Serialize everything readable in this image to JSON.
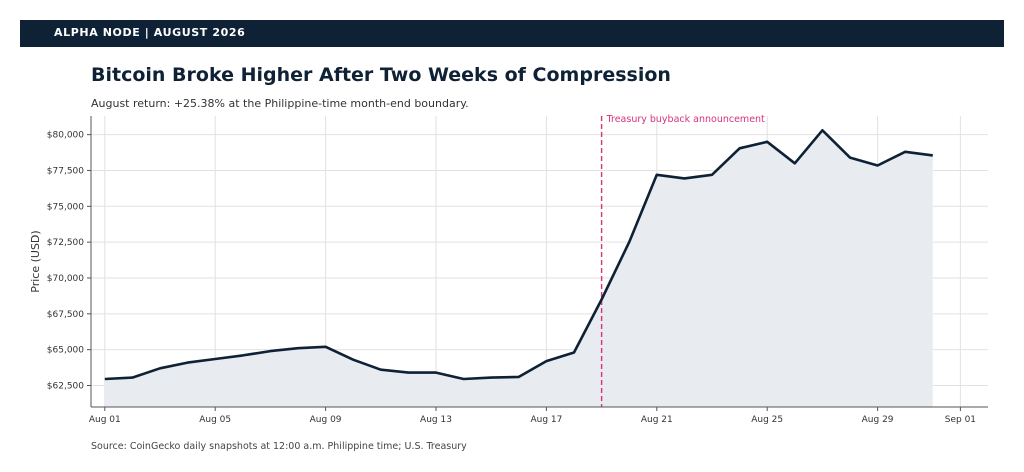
{
  "header": {
    "text": "ALPHA NODE | AUGUST 2026"
  },
  "title": "Bitcoin Broke Higher After Two Weeks of Compression",
  "subtitle": "August return: +25.38% at the Philippine-time month-end boundary.",
  "source": "Source: CoinGecko daily snapshots at 12:00 a.m. Philippine time; U.S. Treasury",
  "colors": {
    "line": "#0f2135",
    "fill": "#e8ecf0",
    "annotation": "#d6337a",
    "header": "#0f2135"
  },
  "chart_data": {
    "type": "line",
    "ylabel": "Price (USD)",
    "x": [
      "2026-08-01",
      "2026-08-02",
      "2026-08-03",
      "2026-08-04",
      "2026-08-05",
      "2026-08-06",
      "2026-08-07",
      "2026-08-08",
      "2026-08-09",
      "2026-08-10",
      "2026-08-11",
      "2026-08-12",
      "2026-08-13",
      "2026-08-14",
      "2026-08-15",
      "2026-08-16",
      "2026-08-17",
      "2026-08-18",
      "2026-08-19",
      "2026-08-20",
      "2026-08-21",
      "2026-08-22",
      "2026-08-23",
      "2026-08-24",
      "2026-08-25",
      "2026-08-26",
      "2026-08-27",
      "2026-08-28",
      "2026-08-29",
      "2026-08-30",
      "2026-08-31"
    ],
    "values": [
      62950,
      63050,
      63700,
      64100,
      64350,
      64600,
      64900,
      65100,
      65200,
      64300,
      63600,
      63400,
      63400,
      62950,
      63050,
      63100,
      64200,
      64800,
      68500,
      72500,
      77200,
      76950,
      77200,
      79050,
      79500,
      78000,
      80300,
      78400,
      77850,
      78800,
      78550
    ],
    "xlim": [
      "2026-07-31T12:00",
      "2026-09-02"
    ],
    "ylim": [
      61000,
      81300
    ],
    "x_ticks": [
      {
        "date": "2026-08-01",
        "label": "Aug 01"
      },
      {
        "date": "2026-08-05",
        "label": "Aug 05"
      },
      {
        "date": "2026-08-09",
        "label": "Aug 09"
      },
      {
        "date": "2026-08-13",
        "label": "Aug 13"
      },
      {
        "date": "2026-08-17",
        "label": "Aug 17"
      },
      {
        "date": "2026-08-21",
        "label": "Aug 21"
      },
      {
        "date": "2026-08-25",
        "label": "Aug 25"
      },
      {
        "date": "2026-08-29",
        "label": "Aug 29"
      },
      {
        "date": "2026-09-01",
        "label": "Sep 01"
      }
    ],
    "y_ticks": [
      {
        "value": 62500,
        "label": "$62,500"
      },
      {
        "value": 65000,
        "label": "$65,000"
      },
      {
        "value": 67500,
        "label": "$67,500"
      },
      {
        "value": 70000,
        "label": "$70,000"
      },
      {
        "value": 72500,
        "label": "$72,500"
      },
      {
        "value": 75000,
        "label": "$75,000"
      },
      {
        "value": 77500,
        "label": "$77,500"
      },
      {
        "value": 80000,
        "label": "$80,000"
      }
    ],
    "grid": true,
    "annotation": {
      "date": "2026-08-19",
      "text": "Treasury buyback announcement"
    }
  }
}
